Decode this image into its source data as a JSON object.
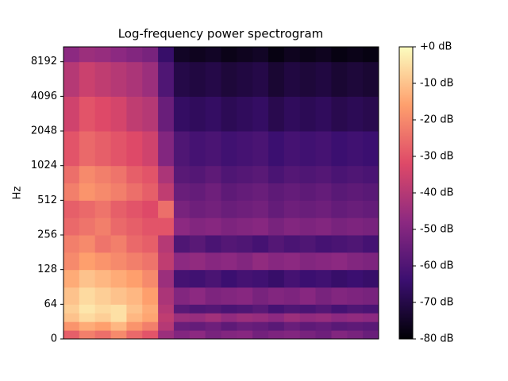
{
  "chart_data": {
    "type": "heatmap",
    "title": "Log-frequency power spectrogram",
    "ylabel": "Hz",
    "yscale": "symlog",
    "ylim": [
      0,
      11025
    ],
    "yticks": [
      0,
      64,
      128,
      256,
      512,
      1024,
      2048,
      4096,
      8192
    ],
    "y_edges": [
      0,
      16,
      32,
      48,
      64,
      90,
      128,
      181,
      256,
      362,
      512,
      724,
      1024,
      2048,
      4096,
      8192,
      11025
    ],
    "z": [
      [
        -28,
        -22,
        -25,
        -20,
        -26,
        -30,
        -45,
        -50,
        -48,
        -52,
        -50,
        -49,
        -53,
        -51,
        -50,
        -52,
        -54,
        -50,
        -52,
        -55
      ],
      [
        -18,
        -14,
        -16,
        -12,
        -18,
        -22,
        -40,
        -55,
        -56,
        -54,
        -57,
        -55,
        -56,
        -58,
        -55,
        -57,
        -56,
        -58,
        -57,
        -58
      ],
      [
        -10,
        -6,
        -8,
        -5,
        -12,
        -15,
        -38,
        -45,
        -46,
        -44,
        -47,
        -45,
        -46,
        -48,
        -45,
        -47,
        -46,
        -48,
        -47,
        -48
      ],
      [
        -8,
        -4,
        -6,
        -5,
        -10,
        -14,
        -40,
        -58,
        -60,
        -59,
        -61,
        -60,
        -58,
        -62,
        -60,
        -61,
        -59,
        -62,
        -60,
        -61
      ],
      [
        -10,
        -6,
        -8,
        -10,
        -12,
        -16,
        -42,
        -50,
        -48,
        -51,
        -50,
        -49,
        -52,
        -50,
        -51,
        -49,
        -52,
        -50,
        -51,
        -52
      ],
      [
        -14,
        -10,
        -12,
        -14,
        -16,
        -20,
        -45,
        -62,
        -63,
        -61,
        -64,
        -62,
        -63,
        -65,
        -62,
        -64,
        -63,
        -65,
        -64,
        -65
      ],
      [
        -20,
        -16,
        -18,
        -20,
        -22,
        -24,
        -38,
        -48,
        -47,
        -49,
        -48,
        -50,
        -47,
        -49,
        -48,
        -50,
        -49,
        -48,
        -50,
        -51
      ],
      [
        -22,
        -20,
        -24,
        -22,
        -26,
        -28,
        -40,
        -60,
        -58,
        -61,
        -59,
        -60,
        -62,
        -59,
        -61,
        -60,
        -62,
        -61,
        -60,
        -62
      ],
      [
        -26,
        -24,
        -22,
        -26,
        -28,
        -30,
        -30,
        -48,
        -50,
        -49,
        -51,
        -50,
        -49,
        -52,
        -50,
        -51,
        -50,
        -52,
        -51,
        -52
      ],
      [
        -28,
        -26,
        -24,
        -28,
        -30,
        -32,
        -25,
        -52,
        -54,
        -53,
        -55,
        -54,
        -53,
        -56,
        -54,
        -55,
        -54,
        -56,
        -55,
        -56
      ],
      [
        -22,
        -18,
        -20,
        -22,
        -25,
        -28,
        -38,
        -55,
        -56,
        -54,
        -57,
        -56,
        -55,
        -57,
        -56,
        -57,
        -56,
        -58,
        -57,
        -58
      ],
      [
        -25,
        -20,
        -22,
        -24,
        -28,
        -30,
        -42,
        -58,
        -59,
        -57,
        -60,
        -59,
        -58,
        -61,
        -59,
        -60,
        -59,
        -61,
        -60,
        -61
      ],
      [
        -30,
        -26,
        -28,
        -30,
        -32,
        -35,
        -50,
        -60,
        -62,
        -61,
        -63,
        -62,
        -61,
        -64,
        -62,
        -63,
        -62,
        -64,
        -63,
        -64
      ],
      [
        -35,
        -30,
        -32,
        -34,
        -38,
        -40,
        -55,
        -66,
        -67,
        -66,
        -68,
        -67,
        -66,
        -69,
        -67,
        -68,
        -67,
        -69,
        -68,
        -69
      ],
      [
        -40,
        -36,
        -38,
        -40,
        -42,
        -45,
        -60,
        -70,
        -71,
        -70,
        -72,
        -71,
        -70,
        -73,
        -71,
        -72,
        -71,
        -73,
        -72,
        -73
      ],
      [
        -48,
        -45,
        -46,
        -48,
        -50,
        -52,
        -65,
        -75,
        -76,
        -75,
        -77,
        -76,
        -75,
        -78,
        -76,
        -77,
        -76,
        -78,
        -77,
        -78
      ]
    ],
    "colormap": [
      "#000004",
      "#3b0f70",
      "#8c2981",
      "#de4968",
      "#fe9f6d",
      "#fcfdbf"
    ],
    "clim": [
      -80,
      0
    ],
    "cticks": [
      {
        "value": 0,
        "label": "+0 dB"
      },
      {
        "value": -10,
        "label": "-10 dB"
      },
      {
        "value": -20,
        "label": "-20 dB"
      },
      {
        "value": -30,
        "label": "-30 dB"
      },
      {
        "value": -40,
        "label": "-40 dB"
      },
      {
        "value": -50,
        "label": "-50 dB"
      },
      {
        "value": -60,
        "label": "-60 dB"
      },
      {
        "value": -70,
        "label": "-70 dB"
      },
      {
        "value": -80,
        "label": "-80 dB"
      }
    ]
  }
}
